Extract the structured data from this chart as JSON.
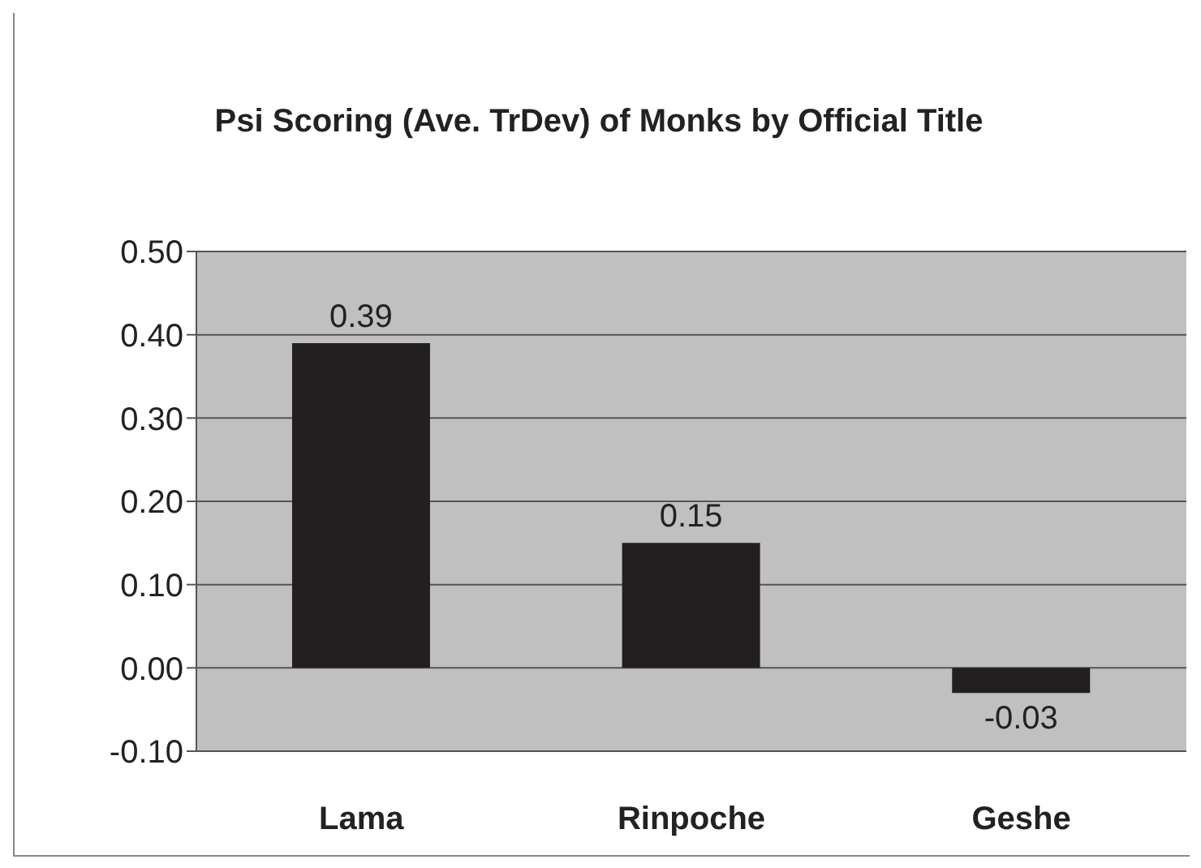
{
  "chart_data": {
    "type": "bar",
    "title": "Psi Scoring (Ave. TrDev) of Monks by Official Title",
    "categories": [
      "Lama",
      "Rinpoche",
      "Geshe"
    ],
    "values": [
      0.39,
      0.15,
      -0.03
    ],
    "color": "#231f20",
    "ylim": [
      -0.1,
      0.5
    ],
    "yticks": [
      {
        "value": -0.1,
        "label": "-0.10"
      },
      {
        "value": 0,
        "label": "0.00"
      },
      {
        "value": 0.1,
        "label": "0.10"
      },
      {
        "value": 0.2,
        "label": "0.20"
      },
      {
        "value": 0.3,
        "label": "0.30"
      },
      {
        "value": 0.4,
        "label": "0.40"
      },
      {
        "value": 0.5,
        "label": "0.50"
      }
    ],
    "grid": "y",
    "data_labels": true
  }
}
